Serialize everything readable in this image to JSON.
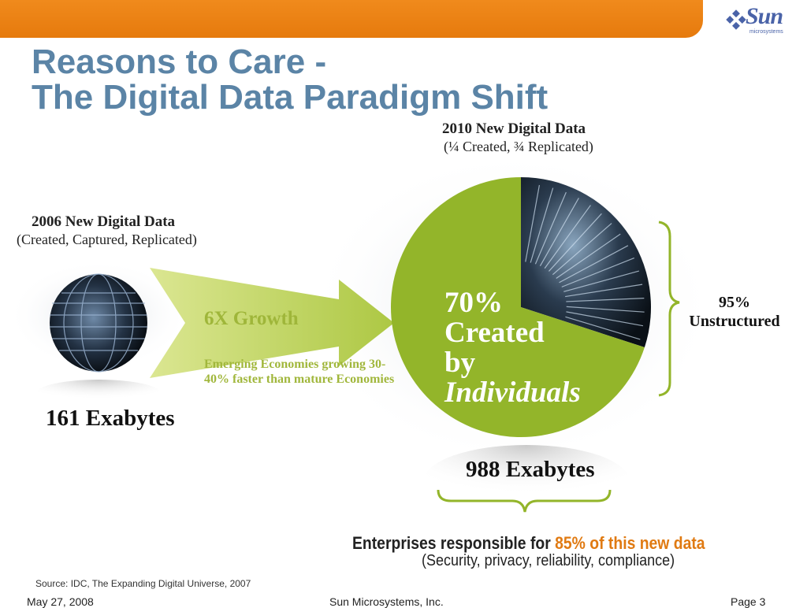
{
  "brand": {
    "logo": "Sun",
    "logo_sub": "microsystems"
  },
  "title": {
    "line1": "Reasons to Care -",
    "line2": "The Digital Data Paradigm Shift"
  },
  "left": {
    "heading": "2006 New Digital Data",
    "subheading": "(Created, Captured, Replicated)",
    "amount": "161 Exabytes"
  },
  "arrow": {
    "growth": "6X Growth",
    "note": "Emerging Economies growing 30-40% faster than mature Economies"
  },
  "right": {
    "heading": "2010 New Digital Data",
    "subheading": "(¼ Created, ¾ Replicated)",
    "amount": "988 Exabytes",
    "pie_line1": "70%",
    "pie_line2": "Created",
    "pie_line3": "by",
    "pie_line4": "Individuals",
    "pie_created_fraction": 0.7,
    "unstructured_pct": "95%",
    "unstructured_label": "Unstructured"
  },
  "enterprise": {
    "prefix": "Enterprises responsible for ",
    "highlight": "85% of this new data",
    "sub": "(Security, privacy, reliability, compliance)"
  },
  "source": "Source: IDC, The Expanding Digital Universe, 2007",
  "footer": {
    "date": "May 27, 2008",
    "company": "Sun Microsystems, Inc.",
    "page": "Page 3"
  },
  "colors": {
    "orange_bar": "#e67a0d",
    "title_blue": "#5b84a6",
    "pie_green": "#93b52a",
    "highlight_orange": "#e07a12",
    "logo_blue": "#4a63a8"
  }
}
